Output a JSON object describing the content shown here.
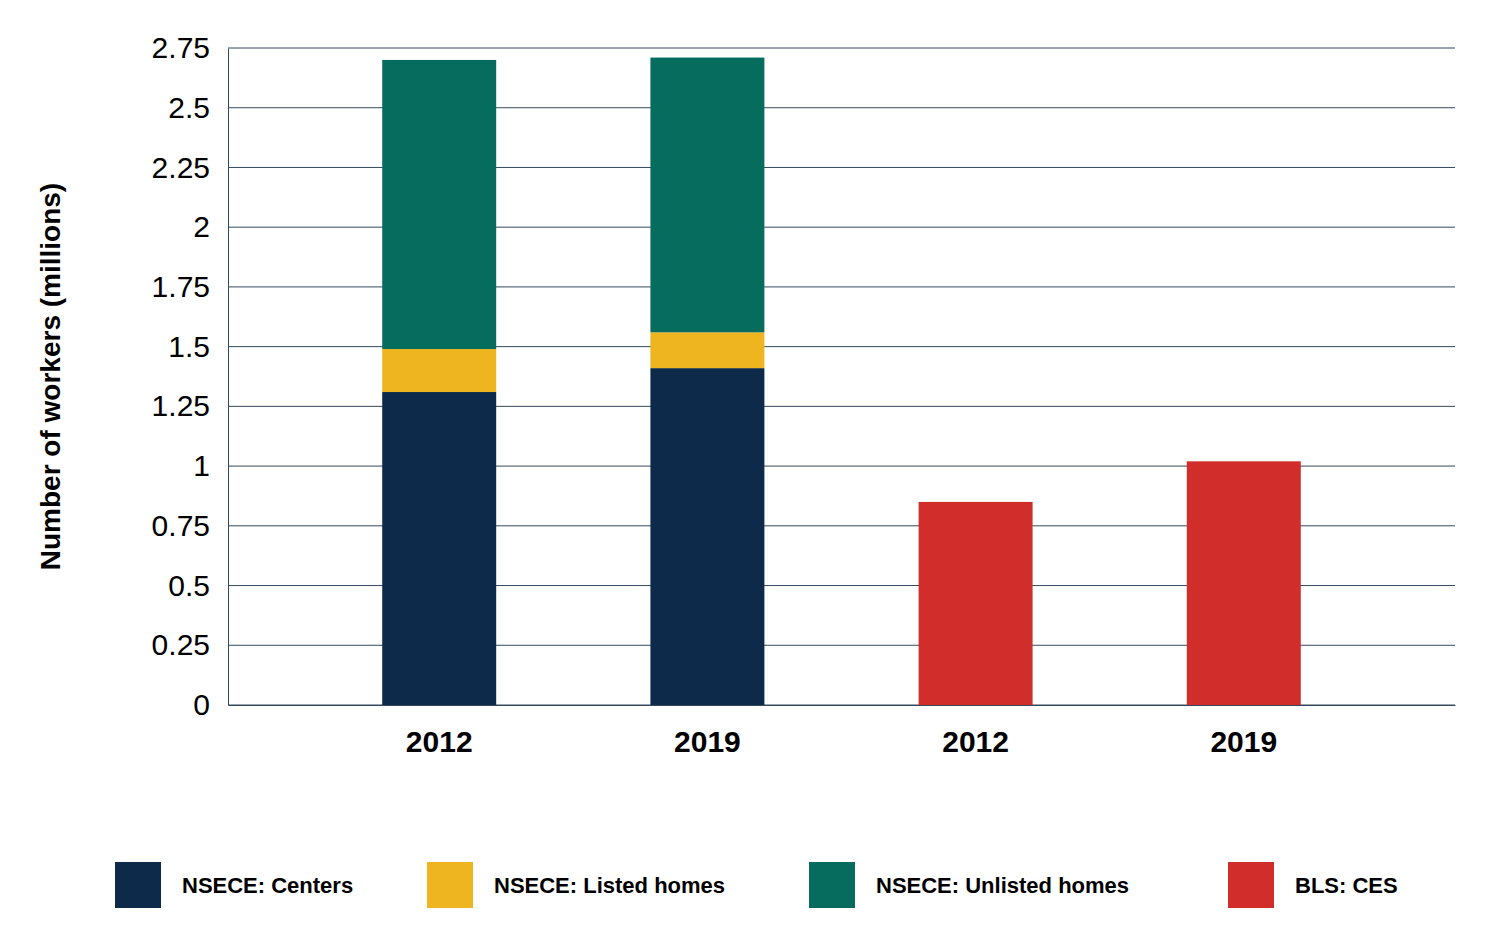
{
  "chart_data": {
    "type": "bar",
    "stacked": true,
    "grid": true,
    "legend": "bottom",
    "y_label": "Number of workers (millions)",
    "categories": [
      "2012",
      "2019",
      "2012",
      "2019"
    ],
    "series": [
      {
        "name": "NSECE: Centers",
        "color": "#0d2a4a",
        "values": [
          1.31,
          1.41,
          null,
          null
        ]
      },
      {
        "name": "NSECE: Listed homes",
        "color": "#efb520",
        "values": [
          0.18,
          0.15,
          null,
          null
        ]
      },
      {
        "name": "NSECE: Unlisted homes",
        "color": "#066d5e",
        "values": [
          1.21,
          1.15,
          null,
          null
        ]
      },
      {
        "name": "BLS: CES",
        "color": "#d12d2a",
        "values": [
          null,
          null,
          0.85,
          1.02
        ]
      }
    ],
    "ylim": [
      0,
      2.75
    ],
    "yticks": [
      0,
      0.25,
      0.5,
      0.75,
      1,
      1.25,
      1.5,
      1.75,
      2,
      2.25,
      2.5,
      2.75
    ]
  }
}
